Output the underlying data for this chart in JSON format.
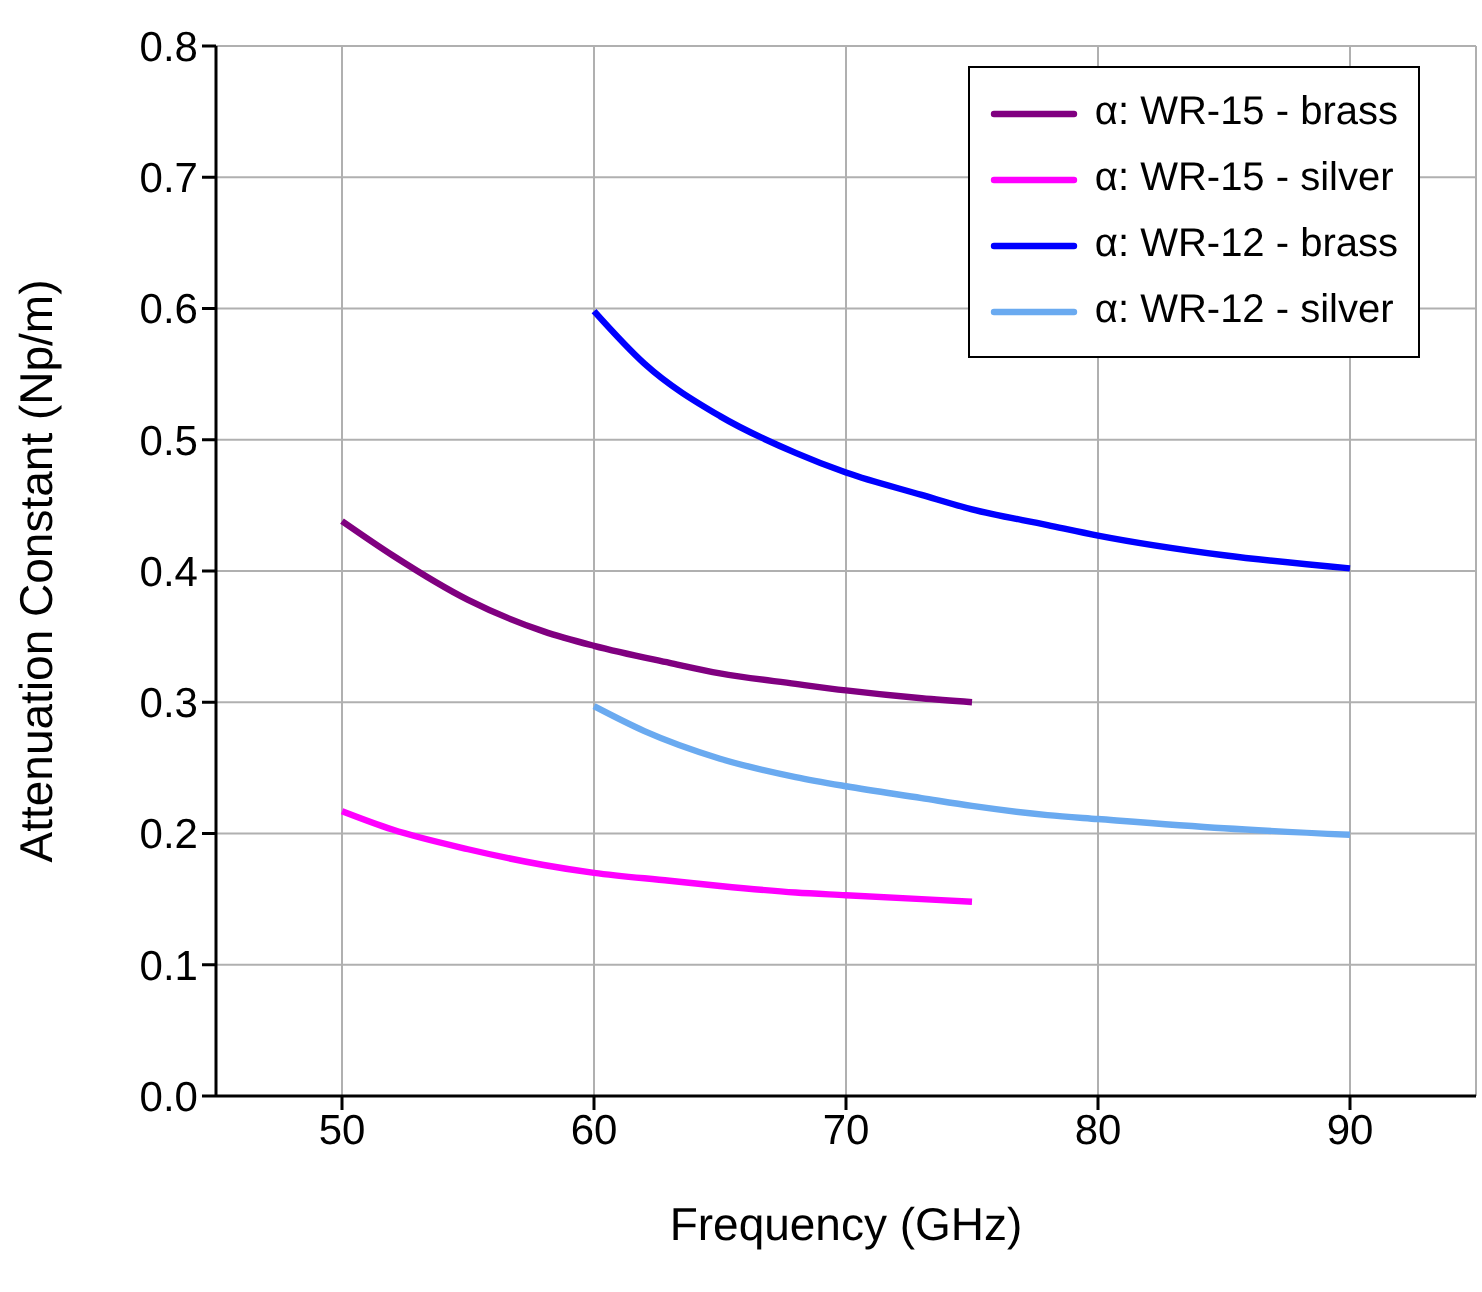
{
  "chart_data": {
    "type": "line",
    "xlabel": "Frequency (GHz)",
    "ylabel": "Attenuation Constant (Np/m)",
    "xlim": [
      45,
      95
    ],
    "xticks": [
      50,
      60,
      70,
      80,
      90
    ],
    "ylim": [
      0,
      0.8
    ],
    "yticks": [
      {
        "value": 0,
        "label": "0.0"
      },
      0.1,
      0.2,
      0.3,
      0.4,
      0.5,
      0.6,
      0.7,
      0.8
    ],
    "grid": true,
    "legend": "top right",
    "marker": "none",
    "line_style": "solid",
    "series": [
      {
        "name": "α: WR-15 - brass",
        "color": "#800080",
        "x": [
          50,
          52,
          55,
          58,
          60,
          63,
          65,
          68,
          70,
          73,
          75
        ],
        "values": [
          0.438,
          0.412,
          0.378,
          0.354,
          0.343,
          0.33,
          0.322,
          0.314,
          0.309,
          0.303,
          0.3
        ]
      },
      {
        "name": "α: WR-15 - silver",
        "color": "#ff00ff",
        "x": [
          50,
          52,
          55,
          58,
          60,
          63,
          65,
          68,
          70,
          73,
          75
        ],
        "values": [
          0.217,
          0.203,
          0.188,
          0.176,
          0.17,
          0.164,
          0.16,
          0.155,
          0.153,
          0.15,
          0.148
        ]
      },
      {
        "name": "α: WR-12 - brass",
        "color": "#0000ff",
        "x": [
          60,
          62,
          65,
          68,
          70,
          73,
          75,
          78,
          80,
          85,
          90
        ],
        "values": [
          0.598,
          0.558,
          0.518,
          0.49,
          0.475,
          0.458,
          0.447,
          0.435,
          0.427,
          0.412,
          0.402
        ]
      },
      {
        "name": "α: WR-12 - silver",
        "color": "#6aaaf0",
        "x": [
          60,
          62,
          65,
          68,
          70,
          73,
          75,
          78,
          80,
          85,
          90
        ],
        "values": [
          0.297,
          0.278,
          0.257,
          0.243,
          0.236,
          0.227,
          0.221,
          0.214,
          0.211,
          0.204,
          0.199
        ]
      }
    ]
  }
}
